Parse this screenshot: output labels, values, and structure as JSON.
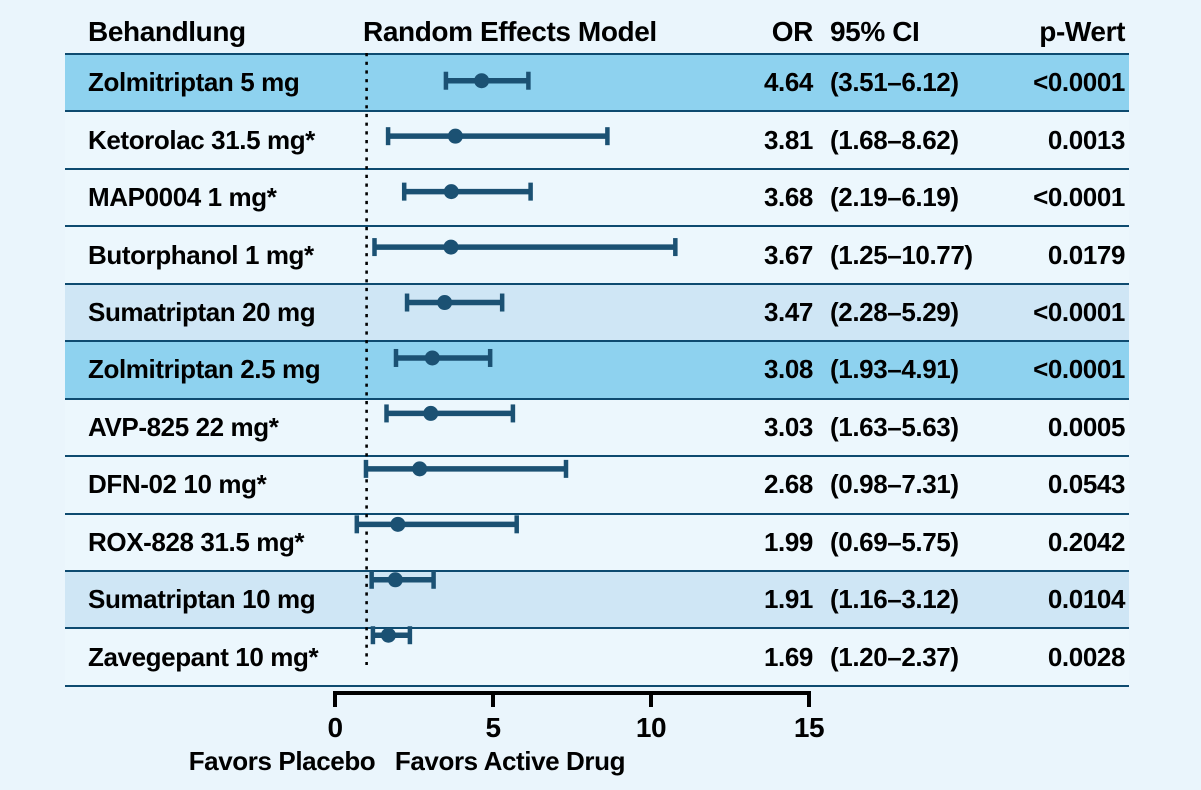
{
  "page": {
    "background": "#eaf5fc"
  },
  "table": {
    "headers": {
      "treatment": "Behandlung",
      "model": "Random Effects Model",
      "or": "OR",
      "ci": "95% CI",
      "p": "p-Wert"
    }
  },
  "chart_data": {
    "type": "forest",
    "xlim": [
      0,
      15
    ],
    "x_ticks": [
      "0",
      "5",
      "10",
      "15"
    ],
    "x_tick_values": [
      0,
      5,
      10,
      15
    ],
    "reference_line_x": 1,
    "footer_left": "Favors Placebo",
    "footer_right": "Favors Active Drug",
    "rows": [
      {
        "label": "Zolmitriptan 5 mg",
        "or": 4.64,
        "ci_low": 3.51,
        "ci_high": 6.12,
        "or_text": "4.64",
        "ci_text": "(3.51–6.12)",
        "p": "<0.0001",
        "highlight": "strong"
      },
      {
        "label": "Ketorolac 31.5 mg*",
        "or": 3.81,
        "ci_low": 1.68,
        "ci_high": 8.62,
        "or_text": "3.81",
        "ci_text": "(1.68–8.62)",
        "p": "0.0013",
        "highlight": "none"
      },
      {
        "label": "MAP0004 1 mg*",
        "or": 3.68,
        "ci_low": 2.19,
        "ci_high": 6.19,
        "or_text": "3.68",
        "ci_text": "(2.19–6.19)",
        "p": "<0.0001",
        "highlight": "none"
      },
      {
        "label": "Butorphanol 1 mg*",
        "or": 3.67,
        "ci_low": 1.25,
        "ci_high": 10.77,
        "or_text": "3.67",
        "ci_text": "(1.25–10.77)",
        "p": "0.0179",
        "highlight": "none"
      },
      {
        "label": "Sumatriptan 20 mg",
        "or": 3.47,
        "ci_low": 2.28,
        "ci_high": 5.29,
        "or_text": "3.47",
        "ci_text": "(2.28–5.29)",
        "p": "<0.0001",
        "highlight": "medium"
      },
      {
        "label": "Zolmitriptan 2.5 mg",
        "or": 3.08,
        "ci_low": 1.93,
        "ci_high": 4.91,
        "or_text": "3.08",
        "ci_text": "(1.93–4.91)",
        "p": "<0.0001",
        "highlight": "strong"
      },
      {
        "label": "AVP-825 22 mg*",
        "or": 3.03,
        "ci_low": 1.63,
        "ci_high": 5.63,
        "or_text": "3.03",
        "ci_text": "(1.63–5.63)",
        "p": "0.0005",
        "highlight": "none"
      },
      {
        "label": "DFN-02 10 mg*",
        "or": 2.68,
        "ci_low": 0.98,
        "ci_high": 7.31,
        "or_text": "2.68",
        "ci_text": "(0.98–7.31)",
        "p": "0.0543",
        "highlight": "none"
      },
      {
        "label": "ROX-828 31.5 mg*",
        "or": 1.99,
        "ci_low": 0.69,
        "ci_high": 5.75,
        "or_text": "1.99",
        "ci_text": "(0.69–5.75)",
        "p": "0.2042",
        "highlight": "none"
      },
      {
        "label": "Sumatriptan 10 mg",
        "or": 1.91,
        "ci_low": 1.16,
        "ci_high": 3.12,
        "or_text": "1.91",
        "ci_text": "(1.16–3.12)",
        "p": "0.0104",
        "highlight": "medium"
      },
      {
        "label": "Zavegepant 10 mg*",
        "or": 1.69,
        "ci_low": 1.2,
        "ci_high": 2.37,
        "or_text": "1.69",
        "ci_text": "(1.20–2.37)",
        "p": "0.0028",
        "highlight": "none"
      }
    ]
  },
  "colors": {
    "background": "#eaf5fc",
    "row_light": "#ecf7fd",
    "highlight_medium": "#cfe6f5",
    "highlight_strong": "#8ed2ef",
    "separator": "#0e4b70",
    "marker": "#1b5173",
    "axis": "#000000"
  }
}
